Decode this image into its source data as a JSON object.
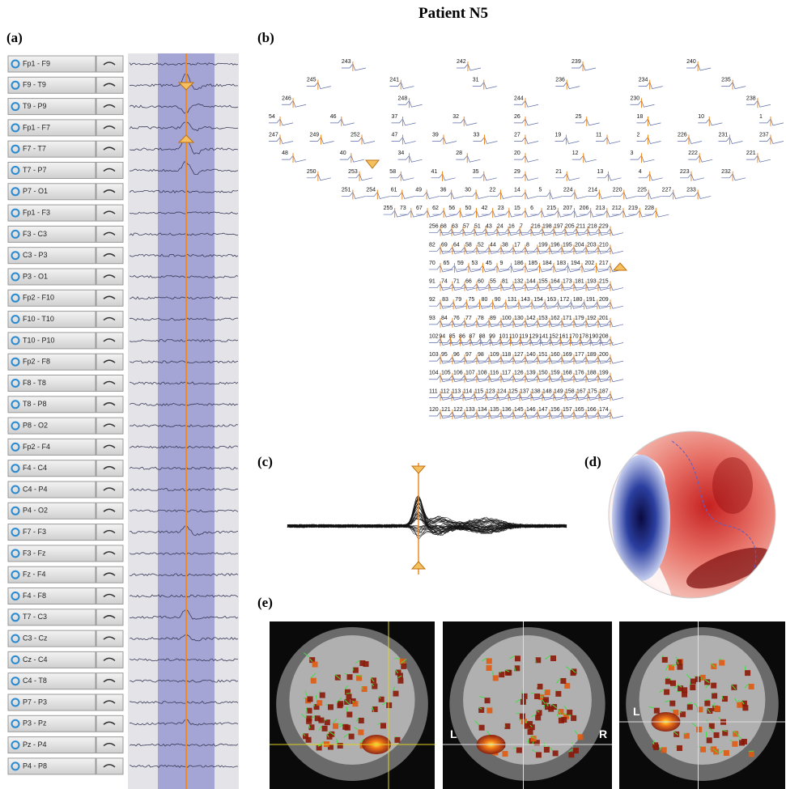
{
  "title": "Patient N5",
  "panels": {
    "a": "(a)",
    "b": "(b)",
    "c": "(c)",
    "d": "(d)",
    "e": "(e)"
  },
  "channels": [
    "Fp1 - F9",
    "F9 - T9",
    "T9 - P9",
    "Fp1 - F7",
    "F7 - T7",
    "T7 - P7",
    "P7 - O1",
    "Fp1 - F3",
    "F3 - C3",
    "C3 - P3",
    "P3 - O1",
    "Fp2 - F10",
    "F10 - T10",
    "T10 - P10",
    "Fp2 - F8",
    "F8 - T8",
    "T8 - P8",
    "P8 - O2",
    "Fp2 - F4",
    "F4 - C4",
    "C4 - P4",
    "P4 - O2",
    "F7 - F3",
    "F3 - Fz",
    "Fz - F4",
    "F4 - F8",
    "T7 - C3",
    "C3 - Cz",
    "Cz - C4",
    "C4 - T8",
    "P7 - P3",
    "P3 - Pz",
    "Pz - P4",
    "P4 - P8"
  ],
  "electrodes": [
    [
      "243",
      "242",
      "239",
      "240"
    ],
    [
      "245",
      "241",
      "31",
      "236",
      "234",
      "235"
    ],
    [
      "246",
      "248",
      "244",
      "230",
      "238"
    ],
    [
      "54",
      "46",
      "37",
      "32",
      "26",
      "25",
      "18",
      "10",
      "1"
    ],
    [
      "247",
      "249",
      "252",
      "47",
      "39",
      "33",
      "27",
      "19",
      "11",
      "2",
      "226",
      "231",
      "237"
    ],
    [
      "48",
      "40",
      "34",
      "28",
      "20",
      "12",
      "3",
      "222",
      "221"
    ],
    [
      "250",
      "253",
      "58",
      "41",
      "35",
      "29",
      "21",
      "13",
      "4",
      "223",
      "232"
    ],
    [
      "251",
      "254",
      "61",
      "49",
      "36",
      "30",
      "22",
      "14",
      "5",
      "224",
      "214",
      "220",
      "225",
      "227",
      "233"
    ],
    [
      "255",
      "73",
      "67",
      "62",
      "56",
      "50",
      "42",
      "23",
      "15",
      "6",
      "215",
      "207",
      "206",
      "213",
      "212",
      "219",
      "228"
    ],
    [
      "256",
      "68",
      "63",
      "57",
      "51",
      "43",
      "24",
      "16",
      "7",
      "216",
      "198",
      "197",
      "205",
      "211",
      "218",
      "229"
    ],
    [
      "82",
      "69",
      "64",
      "58",
      "52",
      "44",
      "38",
      "17",
      "8",
      "199",
      "196",
      "195",
      "204",
      "203",
      "210"
    ],
    [
      "70",
      "65",
      "59",
      "53",
      "45",
      "9",
      "186",
      "185",
      "184",
      "183",
      "194",
      "202",
      "217"
    ],
    [
      "91",
      "74",
      "71",
      "66",
      "60",
      "55",
      "81",
      "132",
      "144",
      "155",
      "164",
      "173",
      "181",
      "193",
      "215"
    ],
    [
      "92",
      "83",
      "79",
      "75",
      "80",
      "90",
      "131",
      "143",
      "154",
      "163",
      "172",
      "180",
      "191",
      "209"
    ],
    [
      "93",
      "84",
      "76",
      "77",
      "78",
      "89",
      "100",
      "130",
      "142",
      "153",
      "162",
      "171",
      "179",
      "192",
      "201"
    ],
    [
      "102",
      "94",
      "85",
      "86",
      "87",
      "88",
      "99",
      "101",
      "110",
      "119",
      "129",
      "141",
      "152",
      "161",
      "170",
      "178",
      "190",
      "208"
    ],
    [
      "103",
      "95",
      "96",
      "97",
      "98",
      "109",
      "118",
      "127",
      "140",
      "151",
      "160",
      "169",
      "177",
      "189",
      "200"
    ],
    [
      "104",
      "105",
      "106",
      "107",
      "108",
      "116",
      "117",
      "126",
      "139",
      "150",
      "159",
      "168",
      "176",
      "188",
      "199"
    ],
    [
      "111",
      "112",
      "113",
      "114",
      "115",
      "123",
      "124",
      "125",
      "137",
      "138",
      "148",
      "149",
      "158",
      "167",
      "175",
      "187"
    ],
    [
      "120",
      "121",
      "122",
      "133",
      "134",
      "135",
      "136",
      "145",
      "146",
      "147",
      "156",
      "157",
      "165",
      "166",
      "174"
    ]
  ],
  "mri_view2_labels": [
    "L",
    "R"
  ],
  "mri_view3_labels": [
    "L"
  ]
}
